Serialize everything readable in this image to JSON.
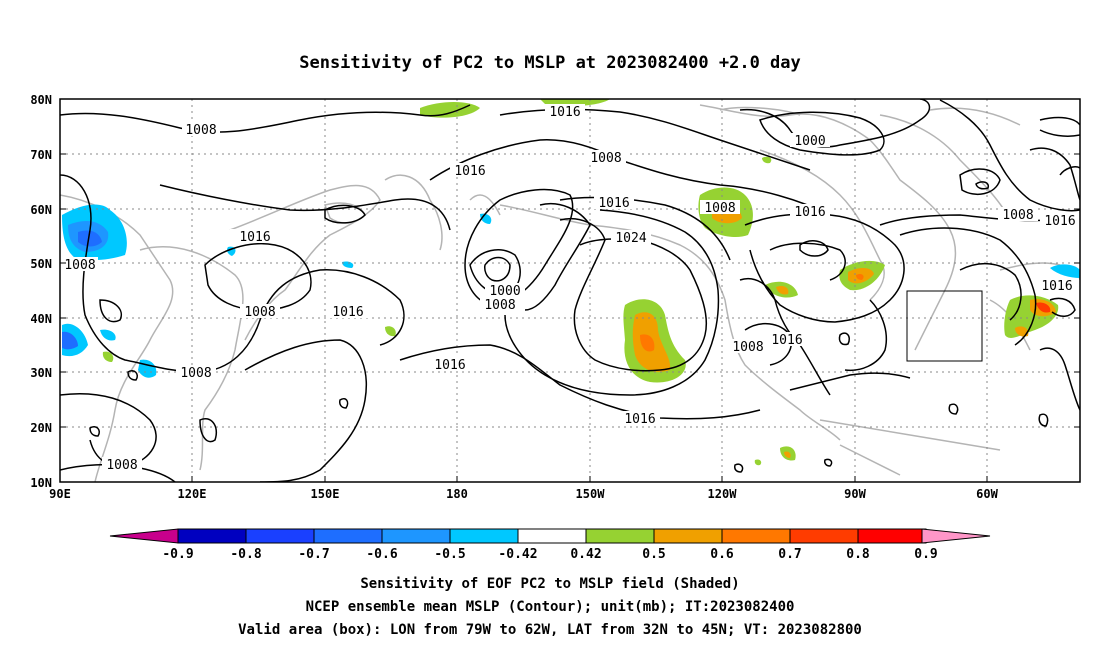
{
  "title": "Sensitivity of PC2 to MSLP at 2023082400 +2.0 day",
  "lat_ticks": [
    "80N",
    "70N",
    "60N",
    "50N",
    "40N",
    "30N",
    "20N",
    "10N"
  ],
  "lon_ticks": [
    "90E",
    "120E",
    "150E",
    "180",
    "150W",
    "120W",
    "90W",
    "60W"
  ],
  "contour_labels": {
    "c1008a": "1008",
    "c1016a": "1016",
    "c1008b": "1008",
    "c1000a": "1000",
    "c1016b": "1016",
    "c1016c": "1016",
    "c1008c": "1008",
    "c1016d": "1016",
    "c1008d": "1008",
    "c1016e": "1016",
    "c1024": "1024",
    "c1016f": "1016",
    "c1000b": "1000",
    "c1008e": "1008",
    "c1016g": "1016",
    "c1008f": "1008",
    "c1016h": "1016",
    "c1016i": "1016",
    "c1016j": "1016",
    "c1008g": "1008",
    "c1008h": "1008",
    "c1016k": "1016",
    "c1008i": "1008",
    "c1008j": "1008"
  },
  "colorbar": {
    "labels": [
      "-0.9",
      "-0.8",
      "-0.7",
      "-0.6",
      "-0.5",
      "-0.42",
      "0.42",
      "0.5",
      "0.6",
      "0.7",
      "0.8",
      "0.9"
    ],
    "colors": [
      "#0000c0",
      "#1a40ff",
      "#1e6eff",
      "#1e96ff",
      "#00c8ff",
      "#ffffff",
      "#96d232",
      "#f0a000",
      "#ff7800",
      "#ff3c00",
      "#ff0000"
    ],
    "low_end_color": "#c8008c",
    "high_end_color": "#ff96c8"
  },
  "footer": {
    "line1": "Sensitivity of EOF PC2 to MSLP field (Shaded)",
    "line2": "NCEP ensemble mean MSLP (Contour); unit(mb); IT:2023082400",
    "line3": "Valid area (box): LON from 79W to 62W, LAT from 32N to 45N; VT: 2023082800"
  }
}
